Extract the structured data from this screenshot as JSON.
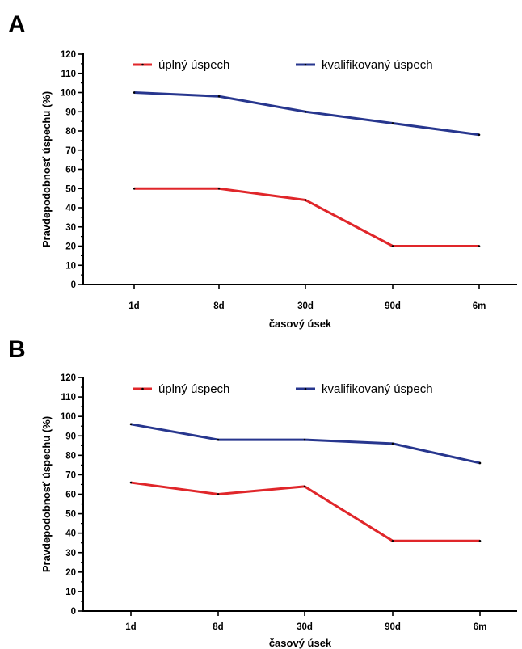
{
  "chart_data": [
    {
      "panel": "A",
      "type": "line",
      "categories": [
        "1d",
        "8d",
        "30d",
        "90d",
        "6m"
      ],
      "xlabel": "časový úsek",
      "ylabel": "Pravdepodobnosť úspechu (%)",
      "ylim": [
        0,
        120
      ],
      "yticks": [
        0,
        10,
        20,
        30,
        40,
        50,
        60,
        70,
        80,
        90,
        100,
        110,
        120
      ],
      "grid": false,
      "legend": "top",
      "series": [
        {
          "name": "úplný úspech",
          "color": "#e0262a",
          "values": [
            50,
            50,
            44,
            20,
            20
          ]
        },
        {
          "name": "kvalifikovaný úspech",
          "color": "#27368e",
          "values": [
            100,
            98,
            90,
            84,
            78
          ]
        }
      ]
    },
    {
      "panel": "B",
      "type": "line",
      "categories": [
        "1d",
        "8d",
        "30d",
        "90d",
        "6m"
      ],
      "xlabel": "časový úsek",
      "ylabel": "Pravdepodobnosť úspechu (%)",
      "ylim": [
        0,
        120
      ],
      "yticks": [
        0,
        10,
        20,
        30,
        40,
        50,
        60,
        70,
        80,
        90,
        100,
        110,
        120
      ],
      "grid": false,
      "legend": "top",
      "series": [
        {
          "name": "úplný úspech",
          "color": "#e0262a",
          "values": [
            66,
            60,
            64,
            36,
            36
          ]
        },
        {
          "name": "kvalifikovaný úspech",
          "color": "#27368e",
          "values": [
            96,
            88,
            88,
            86,
            76
          ]
        }
      ]
    }
  ]
}
